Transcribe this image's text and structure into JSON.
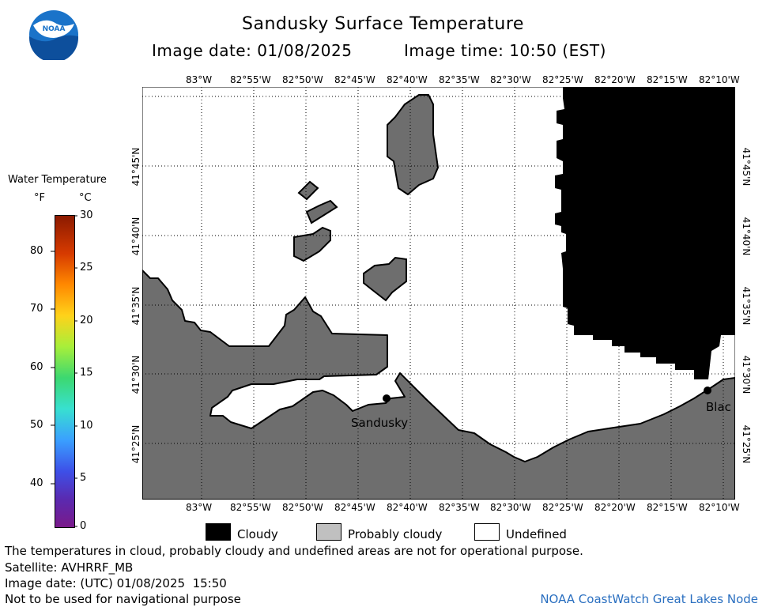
{
  "header": {
    "title": "Sandusky Surface Temperature",
    "image_date": "Image date: 01/08/2025",
    "image_time": "Image time: 10:50 (EST)"
  },
  "logo": {
    "text": "NOAA",
    "icon": "noaa-logo-icon"
  },
  "colorbar": {
    "title": "Water Temperature",
    "unit_f": "°F",
    "unit_c": "°C",
    "f_ticks": [
      "40",
      "50",
      "60",
      "70",
      "80"
    ],
    "c_ticks": [
      "0",
      "5",
      "10",
      "15",
      "20",
      "25",
      "30"
    ]
  },
  "map": {
    "lon_labels": [
      "83°W",
      "82°55'W",
      "82°50'W",
      "82°45'W",
      "82°40'W",
      "82°35'W",
      "82°30'W",
      "82°25'W",
      "82°20'W",
      "82°15'W",
      "82°10'W"
    ],
    "lat_labels": [
      "41°45'N",
      "41°40'N",
      "41°35'N",
      "41°30'N",
      "41°25'N"
    ],
    "places": [
      "Sandusky",
      "Blac"
    ],
    "colors": {
      "land": "#6e6e6e",
      "cloud": "#000000",
      "undefined": "#ffffff"
    }
  },
  "legend": {
    "cloudy": "Cloudy",
    "probably_cloudy": "Probably cloudy",
    "undefined": "Undefined"
  },
  "footer": {
    "disclaimer": "The temperatures in cloud, probably cloudy and undefined areas are not for operational purpose.",
    "satellite": "Satellite: AVHRRF_MB",
    "utc_date": "Image date: (UTC) 01/08/2025  15:50",
    "nav_warning": "Not to be used for navigational purpose",
    "credit": "NOAA CoastWatch Great Lakes Node"
  }
}
